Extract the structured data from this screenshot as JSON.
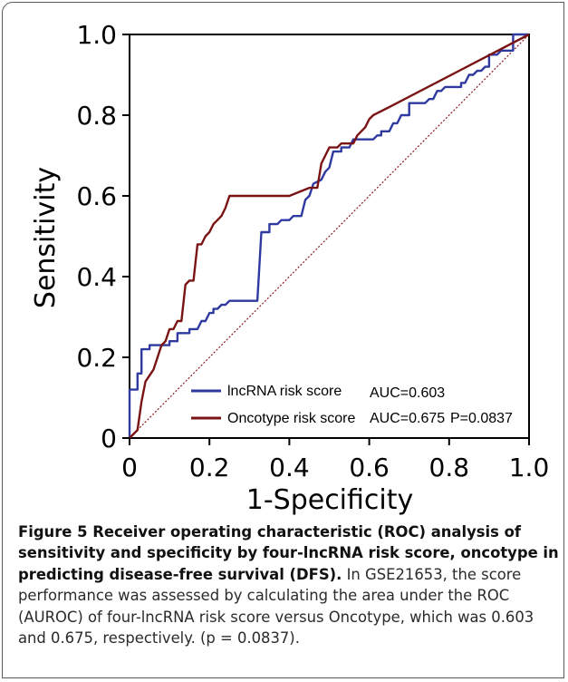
{
  "chart_data": {
    "type": "line",
    "xlabel": "1-Specificity",
    "ylabel": "Sensitivity",
    "xlim": [
      0,
      1
    ],
    "ylim": [
      0,
      1
    ],
    "x_ticks": [
      "0",
      "0.2",
      "0.4",
      "0.6",
      "0.8",
      "1.0"
    ],
    "y_ticks": [
      "0",
      "0.2",
      "0.4",
      "0.6",
      "0.8",
      "1.0"
    ],
    "grid": false,
    "legend_position": "bottom-right",
    "reference_line": {
      "style": "dotted",
      "color": "#8b1a1a",
      "points": [
        [
          0,
          0
        ],
        [
          1,
          1
        ]
      ]
    },
    "series": [
      {
        "name": "lncRNA risk score",
        "color": "#2f3aa0",
        "auc_label": "AUC=0.603",
        "points": [
          [
            0,
            0
          ],
          [
            0,
            0.12
          ],
          [
            0.02,
            0.12
          ],
          [
            0.02,
            0.16
          ],
          [
            0.03,
            0.16
          ],
          [
            0.03,
            0.22
          ],
          [
            0.05,
            0.22
          ],
          [
            0.05,
            0.23
          ],
          [
            0.1,
            0.23
          ],
          [
            0.1,
            0.24
          ],
          [
            0.12,
            0.24
          ],
          [
            0.12,
            0.26
          ],
          [
            0.15,
            0.26
          ],
          [
            0.15,
            0.27
          ],
          [
            0.17,
            0.27
          ],
          [
            0.18,
            0.29
          ],
          [
            0.19,
            0.29
          ],
          [
            0.2,
            0.31
          ],
          [
            0.21,
            0.31
          ],
          [
            0.21,
            0.32
          ],
          [
            0.22,
            0.32
          ],
          [
            0.23,
            0.33
          ],
          [
            0.24,
            0.33
          ],
          [
            0.25,
            0.34
          ],
          [
            0.32,
            0.34
          ],
          [
            0.33,
            0.51
          ],
          [
            0.35,
            0.51
          ],
          [
            0.35,
            0.53
          ],
          [
            0.37,
            0.53
          ],
          [
            0.38,
            0.54
          ],
          [
            0.4,
            0.54
          ],
          [
            0.41,
            0.55
          ],
          [
            0.43,
            0.55
          ],
          [
            0.44,
            0.59
          ],
          [
            0.45,
            0.6
          ],
          [
            0.46,
            0.63
          ],
          [
            0.48,
            0.64
          ],
          [
            0.49,
            0.66
          ],
          [
            0.5,
            0.67
          ],
          [
            0.51,
            0.71
          ],
          [
            0.53,
            0.71
          ],
          [
            0.53,
            0.72
          ],
          [
            0.55,
            0.72
          ],
          [
            0.56,
            0.74
          ],
          [
            0.61,
            0.74
          ],
          [
            0.62,
            0.75
          ],
          [
            0.63,
            0.75
          ],
          [
            0.63,
            0.76
          ],
          [
            0.65,
            0.76
          ],
          [
            0.66,
            0.78
          ],
          [
            0.67,
            0.78
          ],
          [
            0.68,
            0.8
          ],
          [
            0.7,
            0.8
          ],
          [
            0.7,
            0.83
          ],
          [
            0.74,
            0.83
          ],
          [
            0.75,
            0.84
          ],
          [
            0.76,
            0.84
          ],
          [
            0.77,
            0.86
          ],
          [
            0.78,
            0.86
          ],
          [
            0.79,
            0.87
          ],
          [
            0.83,
            0.87
          ],
          [
            0.83,
            0.88
          ],
          [
            0.84,
            0.88
          ],
          [
            0.85,
            0.9
          ],
          [
            0.86,
            0.9
          ],
          [
            0.87,
            0.91
          ],
          [
            0.88,
            0.91
          ],
          [
            0.89,
            0.92
          ],
          [
            0.9,
            0.92
          ],
          [
            0.9,
            0.95
          ],
          [
            0.92,
            0.95
          ],
          [
            0.93,
            0.96
          ],
          [
            0.96,
            0.96
          ],
          [
            0.96,
            1.0
          ],
          [
            1.0,
            1.0
          ]
        ]
      },
      {
        "name": "Oncotype risk score",
        "color": "#7a1414",
        "auc_label": "AUC=0.675",
        "p_label": "P=0.0837",
        "points": [
          [
            0,
            0
          ],
          [
            0.02,
            0.02
          ],
          [
            0.03,
            0.09
          ],
          [
            0.04,
            0.14
          ],
          [
            0.06,
            0.17
          ],
          [
            0.07,
            0.2
          ],
          [
            0.08,
            0.23
          ],
          [
            0.09,
            0.24
          ],
          [
            0.1,
            0.27
          ],
          [
            0.11,
            0.27
          ],
          [
            0.12,
            0.29
          ],
          [
            0.13,
            0.29
          ],
          [
            0.14,
            0.38
          ],
          [
            0.15,
            0.39
          ],
          [
            0.16,
            0.39
          ],
          [
            0.17,
            0.48
          ],
          [
            0.18,
            0.48
          ],
          [
            0.19,
            0.5
          ],
          [
            0.2,
            0.51
          ],
          [
            0.21,
            0.53
          ],
          [
            0.22,
            0.54
          ],
          [
            0.23,
            0.55
          ],
          [
            0.24,
            0.57
          ],
          [
            0.25,
            0.6
          ],
          [
            0.4,
            0.6
          ],
          [
            0.45,
            0.62
          ],
          [
            0.47,
            0.62
          ],
          [
            0.48,
            0.68
          ],
          [
            0.49,
            0.7
          ],
          [
            0.5,
            0.72
          ],
          [
            0.52,
            0.72
          ],
          [
            0.53,
            0.73
          ],
          [
            0.56,
            0.73
          ],
          [
            0.57,
            0.75
          ],
          [
            0.59,
            0.77
          ],
          [
            0.6,
            0.79
          ],
          [
            0.61,
            0.8
          ],
          [
            0.65,
            0.82
          ],
          [
            1.0,
            1.0
          ]
        ]
      }
    ]
  },
  "caption": {
    "label": "Figure 5",
    "title": " Receiver operating characteristic (ROC) analysis of sensitivity and specificity by four-lncRNA risk score, oncotype in predicting disease-free survival (DFS).",
    "body": " In GSE21653, the score performance was assessed by calculating the area under the ROC (AUROC) of four-lncRNA risk score versus Oncotype, which was 0.603 and 0.675, respectively. (p = 0.0837)."
  }
}
